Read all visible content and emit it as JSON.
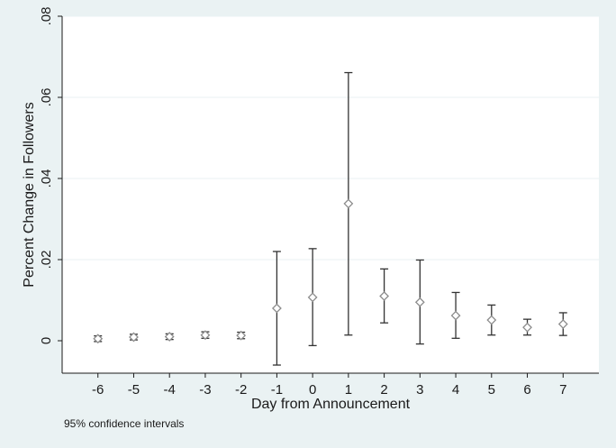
{
  "chart_data": {
    "type": "scatter",
    "xlabel": "Day from Announcement",
    "ylabel": "Percent Change in Followers",
    "note": "95% confidence intervals",
    "xlim": [
      -7,
      8
    ],
    "ylim": [
      -0.008,
      0.08
    ],
    "x_ticks": [
      -6,
      -5,
      -4,
      -3,
      -2,
      -1,
      0,
      1,
      2,
      3,
      4,
      5,
      6,
      7
    ],
    "y_ticks": [
      0,
      0.02,
      0.04,
      0.06,
      0.08
    ],
    "y_tick_labels": [
      "0",
      ".02",
      ".04",
      ".06",
      ".08"
    ],
    "grid": true,
    "points": [
      {
        "x": -6,
        "y": 0.0005,
        "lo": -0.0002,
        "hi": 0.0012
      },
      {
        "x": -5,
        "y": 0.0009,
        "lo": 0.0002,
        "hi": 0.0016
      },
      {
        "x": -4,
        "y": 0.001,
        "lo": 0.0003,
        "hi": 0.0017
      },
      {
        "x": -3,
        "y": 0.0014,
        "lo": 0.0006,
        "hi": 0.0022
      },
      {
        "x": -2,
        "y": 0.0013,
        "lo": 0.0005,
        "hi": 0.0021
      },
      {
        "x": -1,
        "y": 0.008,
        "lo": -0.006,
        "hi": 0.022
      },
      {
        "x": 0,
        "y": 0.0107,
        "lo": -0.0012,
        "hi": 0.0227
      },
      {
        "x": 1,
        "y": 0.0338,
        "lo": 0.0014,
        "hi": 0.0661
      },
      {
        "x": 2,
        "y": 0.011,
        "lo": 0.0044,
        "hi": 0.0177
      },
      {
        "x": 3,
        "y": 0.0095,
        "lo": -0.0008,
        "hi": 0.0199
      },
      {
        "x": 4,
        "y": 0.0062,
        "lo": 0.0006,
        "hi": 0.0119
      },
      {
        "x": 5,
        "y": 0.0051,
        "lo": 0.0014,
        "hi": 0.0088
      },
      {
        "x": 6,
        "y": 0.0033,
        "lo": 0.0014,
        "hi": 0.0053
      },
      {
        "x": 7,
        "y": 0.0041,
        "lo": 0.0013,
        "hi": 0.0069
      }
    ],
    "colors": {
      "background": "#eaf2f3",
      "plot_area": "#ffffff",
      "grid": "#eaf2f3",
      "marker": "#8c8c8c",
      "ci": "#333333"
    }
  }
}
